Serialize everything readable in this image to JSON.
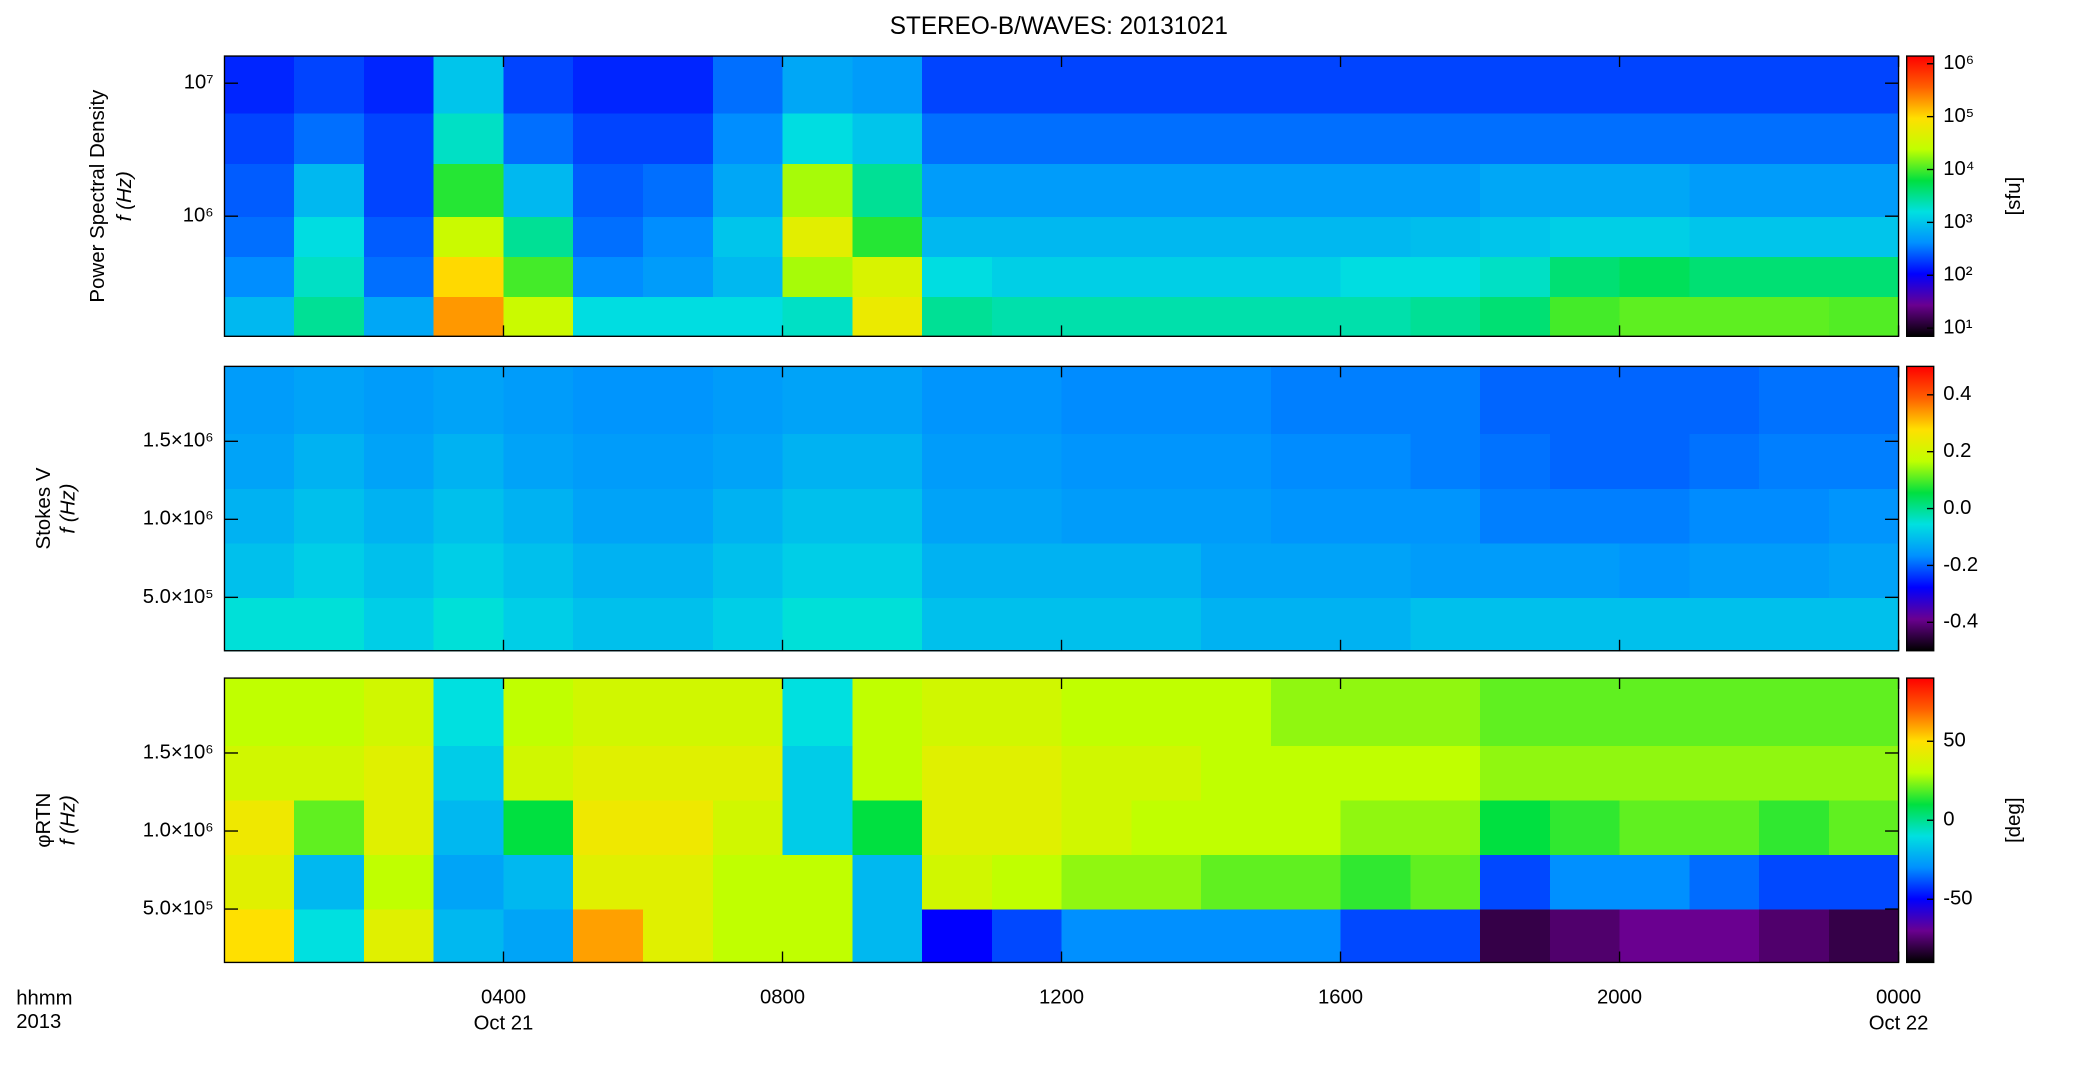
{
  "title": "STEREO-B/WAVES: 20131021",
  "time_axis": {
    "unit_label": "hhmm",
    "year_label": "2013",
    "sublabels": [
      {
        "value": 4,
        "label": "Oct 21"
      },
      {
        "value": 24,
        "label": "Oct 22"
      }
    ]
  },
  "chart_data": [
    {
      "type": "heatmap",
      "ylabel": [
        "Power Spectral Density",
        "f (Hz)"
      ],
      "clabel": "[sfu]",
      "xlim": [
        0,
        24
      ],
      "xticks": [
        {
          "value": 4,
          "label": "0400"
        },
        {
          "value": 8,
          "label": "0800"
        },
        {
          "value": 12,
          "label": "1200"
        },
        {
          "value": 16,
          "label": "1600"
        },
        {
          "value": 20,
          "label": "2000"
        },
        {
          "value": 24,
          "label": "0000"
        }
      ],
      "ylim": [
        125000,
        16000000
      ],
      "ylog": true,
      "yticks": [
        {
          "value": 1000000,
          "label": "10⁶"
        },
        {
          "value": 10000000,
          "label": "10⁷"
        }
      ],
      "clim": [
        7,
        1400000
      ],
      "clog": true,
      "cticks": [
        {
          "value": 10,
          "label": "10¹"
        },
        {
          "value": 100,
          "label": "10²"
        },
        {
          "value": 1000,
          "label": "10³"
        },
        {
          "value": 10000,
          "label": "10⁴"
        },
        {
          "value": 100000,
          "label": "10⁵"
        },
        {
          "value": 1000000,
          "label": "10⁶"
        }
      ],
      "colormap": [
        "#000000",
        "#6a0090",
        "#0000ff",
        "#0090ff",
        "#00e0e0",
        "#00e040",
        "#c0ff00",
        "#ffe000",
        "#ff6000",
        "#ff0000"
      ],
      "xbins": [
        0,
        1,
        2,
        3,
        4,
        5,
        6,
        7,
        8,
        9,
        10,
        11,
        12,
        13,
        14,
        15,
        16,
        17,
        18,
        19,
        20,
        21,
        22,
        23,
        24
      ],
      "ybins": [
        125000,
        250000,
        500000,
        1000000,
        2500000,
        6000000,
        16000000
      ],
      "values": [
        [
          800,
          3000,
          600,
          200000,
          30000,
          1500,
          1500,
          1500,
          2000,
          60000,
          3000,
          2500,
          2500,
          2500,
          2500,
          2500,
          2500,
          3000,
          4000,
          10000,
          12000,
          12000,
          12000,
          11000
        ],
        [
          400,
          2000,
          300,
          100000,
          10000,
          400,
          500,
          800,
          20000,
          40000,
          1500,
          1200,
          1200,
          1200,
          1200,
          1200,
          1500,
          1500,
          2000,
          4000,
          5000,
          4000,
          4000,
          4000
        ],
        [
          300,
          1500,
          250,
          30000,
          3000,
          300,
          400,
          1000,
          50000,
          8000,
          800,
          800,
          800,
          800,
          800,
          800,
          800,
          900,
          1000,
          1200,
          1200,
          1000,
          1000,
          1000
        ],
        [
          250,
          800,
          200,
          8000,
          800,
          250,
          300,
          600,
          20000,
          3000,
          500,
          500,
          500,
          500,
          500,
          500,
          500,
          500,
          600,
          600,
          600,
          500,
          500,
          500
        ],
        [
          200,
          300,
          200,
          2000,
          300,
          200,
          200,
          400,
          1500,
          1000,
          300,
          300,
          300,
          300,
          300,
          300,
          300,
          300,
          300,
          300,
          300,
          300,
          300,
          300
        ],
        [
          150,
          200,
          150,
          1000,
          200,
          150,
          150,
          300,
          600,
          500,
          200,
          200,
          200,
          200,
          200,
          200,
          200,
          200,
          200,
          200,
          200,
          200,
          200,
          200
        ]
      ]
    },
    {
      "type": "heatmap",
      "ylabel": [
        "Stokes V",
        "f (Hz)"
      ],
      "xlim": [
        0,
        24
      ],
      "xticks": [
        {
          "value": 4,
          "label": "0400"
        },
        {
          "value": 8,
          "label": "0800"
        },
        {
          "value": 12,
          "label": "1200"
        },
        {
          "value": 16,
          "label": "1600"
        },
        {
          "value": 20,
          "label": "2000"
        },
        {
          "value": 24,
          "label": "0000"
        }
      ],
      "ylim": [
        158000,
        1980000
      ],
      "yticks": [
        {
          "value": 500000,
          "label": "5.0×10⁵"
        },
        {
          "value": 1000000,
          "label": "1.0×10⁶"
        },
        {
          "value": 1500000,
          "label": "1.5×10⁶"
        }
      ],
      "clim": [
        -0.5,
        0.5
      ],
      "cticks": [
        -0.4,
        -0.2,
        {
          "value": 0,
          "label": "0.0"
        },
        0.2,
        0.4
      ],
      "colormap": [
        "#000000",
        "#6a0090",
        "#0000ff",
        "#0090ff",
        "#00e0e0",
        "#00e040",
        "#c0ff00",
        "#ffe000",
        "#ff6000",
        "#ff0000"
      ],
      "xbins": [
        0,
        1,
        2,
        3,
        4,
        5,
        6,
        7,
        8,
        9,
        10,
        11,
        12,
        13,
        14,
        15,
        16,
        17,
        18,
        19,
        20,
        21,
        22,
        23,
        24
      ],
      "ybins": [
        158000,
        500000,
        850000,
        1200000,
        1550000,
        1980000
      ],
      "values": [
        [
          -0.05,
          -0.05,
          -0.08,
          -0.05,
          -0.08,
          -0.1,
          -0.1,
          -0.08,
          -0.05,
          -0.05,
          -0.1,
          -0.1,
          -0.1,
          -0.1,
          -0.12,
          -0.12,
          -0.12,
          -0.1,
          -0.1,
          -0.1,
          -0.1,
          -0.1,
          -0.1,
          -0.1
        ],
        [
          -0.1,
          -0.08,
          -0.1,
          -0.08,
          -0.1,
          -0.12,
          -0.12,
          -0.1,
          -0.08,
          -0.08,
          -0.12,
          -0.12,
          -0.12,
          -0.12,
          -0.14,
          -0.14,
          -0.14,
          -0.15,
          -0.15,
          -0.15,
          -0.16,
          -0.15,
          -0.15,
          -0.14
        ],
        [
          -0.12,
          -0.1,
          -0.12,
          -0.1,
          -0.12,
          -0.14,
          -0.14,
          -0.12,
          -0.1,
          -0.1,
          -0.14,
          -0.14,
          -0.15,
          -0.15,
          -0.15,
          -0.16,
          -0.16,
          -0.16,
          -0.18,
          -0.18,
          -0.18,
          -0.17,
          -0.17,
          -0.16
        ],
        [
          -0.14,
          -0.12,
          -0.14,
          -0.12,
          -0.14,
          -0.15,
          -0.15,
          -0.14,
          -0.12,
          -0.12,
          -0.15,
          -0.15,
          -0.16,
          -0.16,
          -0.16,
          -0.17,
          -0.17,
          -0.18,
          -0.19,
          -0.2,
          -0.2,
          -0.19,
          -0.18,
          -0.18
        ],
        [
          -0.15,
          -0.14,
          -0.15,
          -0.14,
          -0.15,
          -0.16,
          -0.16,
          -0.15,
          -0.14,
          -0.14,
          -0.16,
          -0.16,
          -0.17,
          -0.17,
          -0.17,
          -0.18,
          -0.18,
          -0.18,
          -0.2,
          -0.2,
          -0.2,
          -0.2,
          -0.19,
          -0.19
        ]
      ]
    },
    {
      "type": "heatmap",
      "ylabel": [
        "φRTN",
        "f (Hz)"
      ],
      "clabel": "[deg]",
      "xlim": [
        0,
        24
      ],
      "xticks": [
        {
          "value": 4,
          "label": "0400"
        },
        {
          "value": 8,
          "label": "0800"
        },
        {
          "value": 12,
          "label": "1200"
        },
        {
          "value": 16,
          "label": "1600"
        },
        {
          "value": 20,
          "label": "2000"
        },
        {
          "value": 24,
          "label": "0000"
        }
      ],
      "ylim": [
        158000,
        1980000
      ],
      "yticks": [
        {
          "value": 500000,
          "label": "5.0×10⁵"
        },
        {
          "value": 1000000,
          "label": "1.0×10⁶"
        },
        {
          "value": 1500000,
          "label": "1.5×10⁶"
        }
      ],
      "clim": [
        -90,
        90
      ],
      "cticks": [
        -50,
        0,
        50
      ],
      "colormap": [
        "#000000",
        "#6a0090",
        "#0000ff",
        "#0090ff",
        "#00e0e0",
        "#00e040",
        "#c0ff00",
        "#ffe000",
        "#ff6000",
        "#ff0000"
      ],
      "xbins": [
        0,
        1,
        2,
        3,
        4,
        5,
        6,
        7,
        8,
        9,
        10,
        11,
        12,
        13,
        14,
        15,
        16,
        17,
        18,
        19,
        20,
        21,
        22,
        23,
        24
      ],
      "ybins": [
        158000,
        500000,
        850000,
        1200000,
        1550000,
        1980000
      ],
      "values": [
        [
          50,
          -10,
          40,
          -20,
          -25,
          60,
          40,
          30,
          30,
          -20,
          -50,
          -40,
          -30,
          -30,
          -30,
          -30,
          -40,
          -40,
          -80,
          -75,
          -70,
          -70,
          -75,
          -80
        ],
        [
          40,
          -20,
          30,
          -25,
          -20,
          40,
          40,
          30,
          30,
          -20,
          35,
          30,
          25,
          25,
          20,
          20,
          15,
          20,
          -40,
          -30,
          -30,
          -35,
          -40,
          -40
        ],
        [
          45,
          20,
          40,
          -20,
          10,
          45,
          45,
          35,
          -15,
          10,
          40,
          40,
          35,
          30,
          30,
          30,
          25,
          25,
          10,
          15,
          20,
          20,
          15,
          20
        ],
        [
          35,
          35,
          40,
          -15,
          35,
          40,
          40,
          40,
          -15,
          30,
          40,
          40,
          35,
          35,
          30,
          30,
          30,
          30,
          25,
          25,
          25,
          25,
          25,
          25
        ],
        [
          30,
          30,
          35,
          -10,
          30,
          35,
          35,
          35,
          -10,
          30,
          35,
          35,
          30,
          30,
          30,
          25,
          25,
          25,
          20,
          20,
          20,
          20,
          20,
          20
        ]
      ]
    }
  ]
}
